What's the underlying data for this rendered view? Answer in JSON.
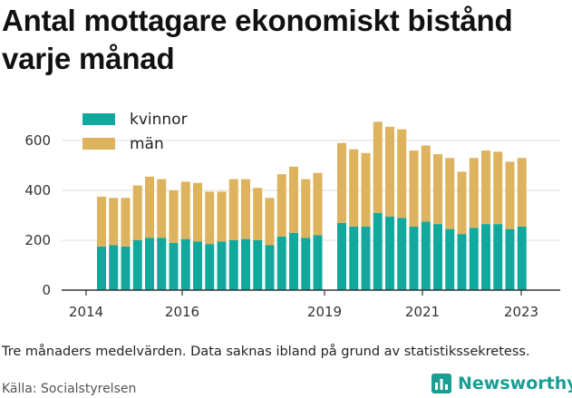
{
  "title": "Antal mottagare ekonomiskt bistånd varje månad",
  "note": "Tre månaders medelvärden. Data saknas ibland på grund av statistikssekretess.",
  "source": "Källa: Socialstyrelsen",
  "brand": {
    "name": "Newsworthy",
    "icon": "newsworthy-logo-icon",
    "color": "#1a9e92"
  },
  "chart_data": {
    "type": "bar",
    "stacked": true,
    "title": "Antal mottagare ekonomiskt bistånd varje månad",
    "xlabel": "",
    "ylabel": "",
    "ylim": [
      0,
      700
    ],
    "yticks": [
      0,
      200,
      400,
      600
    ],
    "xticks": [
      "2014",
      "2016",
      "2019",
      "2021",
      "2023"
    ],
    "grid": true,
    "legend_position": "top-left",
    "series": [
      {
        "name": "kvinnor",
        "color": "#13a89e",
        "values": [
          175,
          180,
          175,
          200,
          210,
          210,
          190,
          205,
          195,
          185,
          195,
          200,
          205,
          200,
          180,
          215,
          230,
          210,
          220,
          null,
          270,
          255,
          255,
          310,
          295,
          290,
          255,
          275,
          265,
          245,
          225,
          250,
          265,
          265,
          245,
          255
        ]
      },
      {
        "name": "män",
        "color": "#ddb35e",
        "values": [
          200,
          190,
          195,
          220,
          245,
          235,
          210,
          230,
          235,
          210,
          200,
          245,
          240,
          210,
          190,
          250,
          265,
          235,
          250,
          null,
          320,
          310,
          295,
          365,
          360,
          355,
          305,
          305,
          280,
          285,
          250,
          280,
          295,
          290,
          270,
          275
        ]
      }
    ]
  }
}
